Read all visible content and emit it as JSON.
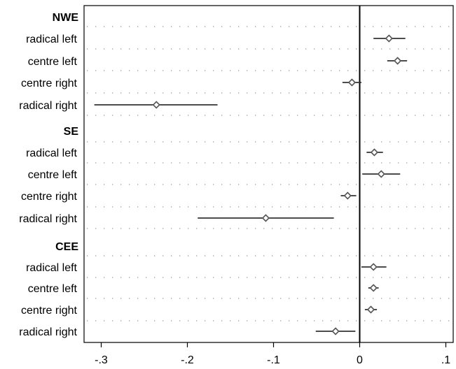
{
  "chart_data": {
    "type": "scatter",
    "subtype": "coefficient-plot",
    "title": "",
    "xlabel": "",
    "ylabel": "",
    "xlim": [
      -0.32,
      0.1
    ],
    "xticks": [
      -0.3,
      -0.2,
      -0.1,
      0,
      0.1
    ],
    "xtick_labels": [
      "-.3",
      "-.2",
      "-.1",
      "0",
      ".1"
    ],
    "reference_line": 0,
    "grid": "horizontal-dotted",
    "marker": "hollow-diamond",
    "groups": [
      {
        "name": "NWE",
        "rows": [
          {
            "label": "radical left",
            "estimate": 0.034,
            "ci": [
              0.016,
              0.053
            ]
          },
          {
            "label": "centre left",
            "estimate": 0.044,
            "ci": [
              0.032,
              0.055
            ]
          },
          {
            "label": "centre right",
            "estimate": -0.009,
            "ci": [
              -0.02,
              0.002
            ]
          },
          {
            "label": "radical right",
            "estimate": -0.236,
            "ci": [
              -0.308,
              -0.165
            ]
          }
        ]
      },
      {
        "name": "SE",
        "rows": [
          {
            "label": "radical left",
            "estimate": 0.017,
            "ci": [
              0.008,
              0.027
            ]
          },
          {
            "label": "centre left",
            "estimate": 0.025,
            "ci": [
              0.003,
              0.047
            ]
          },
          {
            "label": "centre right",
            "estimate": -0.014,
            "ci": [
              -0.022,
              -0.004
            ]
          },
          {
            "label": "radical right",
            "estimate": -0.109,
            "ci": [
              -0.188,
              -0.03
            ]
          }
        ]
      },
      {
        "name": "CEE",
        "rows": [
          {
            "label": "radical left",
            "estimate": 0.016,
            "ci": [
              0.002,
              0.031
            ]
          },
          {
            "label": "centre left",
            "estimate": 0.016,
            "ci": [
              0.01,
              0.022
            ]
          },
          {
            "label": "centre right",
            "estimate": 0.013,
            "ci": [
              0.006,
              0.02
            ]
          },
          {
            "label": "radical right",
            "estimate": -0.028,
            "ci": [
              -0.051,
              -0.005
            ]
          }
        ]
      }
    ]
  }
}
